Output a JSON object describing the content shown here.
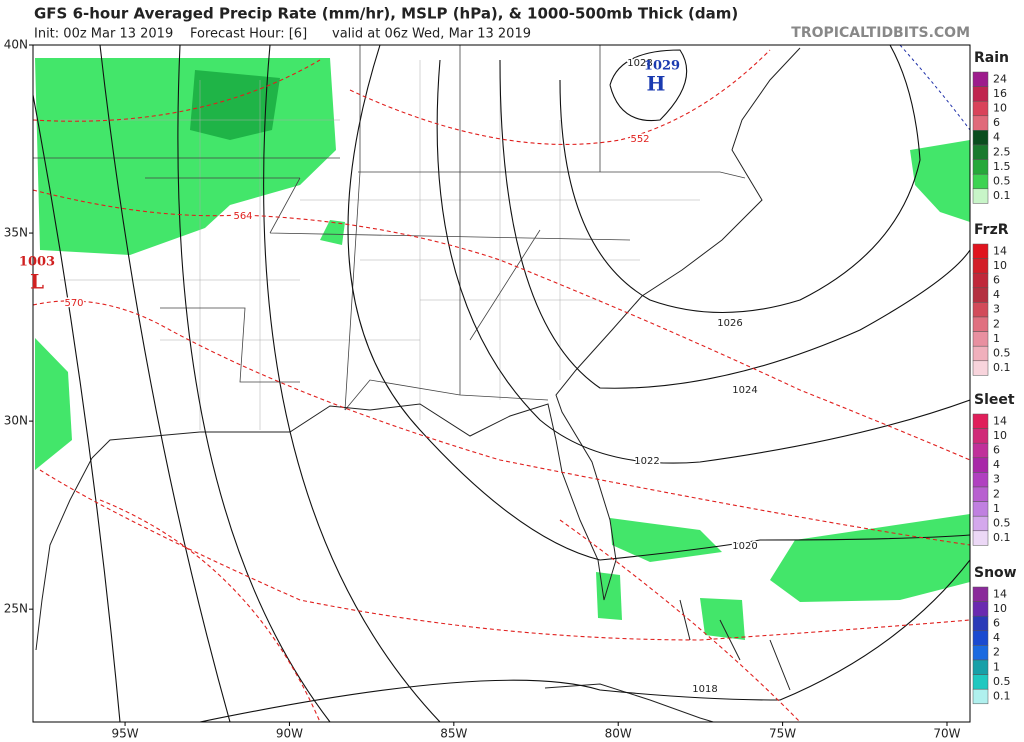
{
  "header": {
    "title": "GFS 6-hour Averaged Precip Rate (mm/hr), MSLP (hPa), & 1000-500mb Thick (dam)",
    "init": "Init: 00z Mar 13 2019",
    "forecast_hour": "Forecast Hour: [6]",
    "valid": "valid at 06z Wed, Mar 13 2019",
    "watermark": "TROPICALTIDBITS.COM"
  },
  "map": {
    "lat_range": [
      22,
      40
    ],
    "lon_range": [
      -97.8,
      -69.3
    ],
    "lat_ticks": [
      {
        "value": 40,
        "label": "40N"
      },
      {
        "value": 35,
        "label": "35N"
      },
      {
        "value": 30,
        "label": "30N"
      },
      {
        "value": 25,
        "label": "25N"
      }
    ],
    "lon_ticks": [
      {
        "value": -95,
        "label": "95W"
      },
      {
        "value": -90,
        "label": "90W"
      },
      {
        "value": -85,
        "label": "85W"
      },
      {
        "value": -80,
        "label": "80W"
      },
      {
        "value": -75,
        "label": "75W"
      },
      {
        "value": -70,
        "label": "70W"
      }
    ],
    "isobar_labels": [
      "1028",
      "1026",
      "1024",
      "1022",
      "1020",
      "1018"
    ],
    "thickness_labels": [
      "552",
      "564",
      "570"
    ],
    "high": {
      "pressure": "1029",
      "symbol": "H"
    },
    "low": {
      "pressure": "1003",
      "symbol": "L"
    }
  },
  "legend": [
    {
      "title": "Rain",
      "labels": [
        24,
        16,
        10,
        6,
        4,
        2.5,
        1.5,
        0.5,
        0.1
      ],
      "colors": [
        "#9d1c8c",
        "#c0254f",
        "#d9435a",
        "#e06a7a",
        "#0a4d1e",
        "#1a7a2e",
        "#27a83a",
        "#3ed352",
        "#c8f5c8"
      ]
    },
    {
      "title": "FrzR",
      "labels": [
        14,
        10,
        6,
        4,
        3,
        2,
        1,
        0.5,
        0.1
      ],
      "colors": [
        "#e0141e",
        "#d21e28",
        "#c0283a",
        "#b43040",
        "#d24b5a",
        "#e07080",
        "#e890a0",
        "#f0b0bc",
        "#f8d4dc"
      ]
    },
    {
      "title": "Sleet",
      "labels": [
        14,
        10,
        6,
        4,
        3,
        2,
        1,
        0.5,
        0.1
      ],
      "colors": [
        "#e01e5a",
        "#d02a78",
        "#c0309a",
        "#a828a8",
        "#b040c0",
        "#b860d0",
        "#c080e0",
        "#d4a8ec",
        "#ecd8f6"
      ]
    },
    {
      "title": "Snow",
      "labels": [
        14,
        10,
        6,
        4,
        2,
        1,
        0.5,
        0.1
      ],
      "colors": [
        "#8a2a9a",
        "#6a2ab0",
        "#2a3ab8",
        "#1a4ad0",
        "#1a6ae0",
        "#18a0a8",
        "#20c8c0",
        "#b0f0ee"
      ]
    }
  ]
}
